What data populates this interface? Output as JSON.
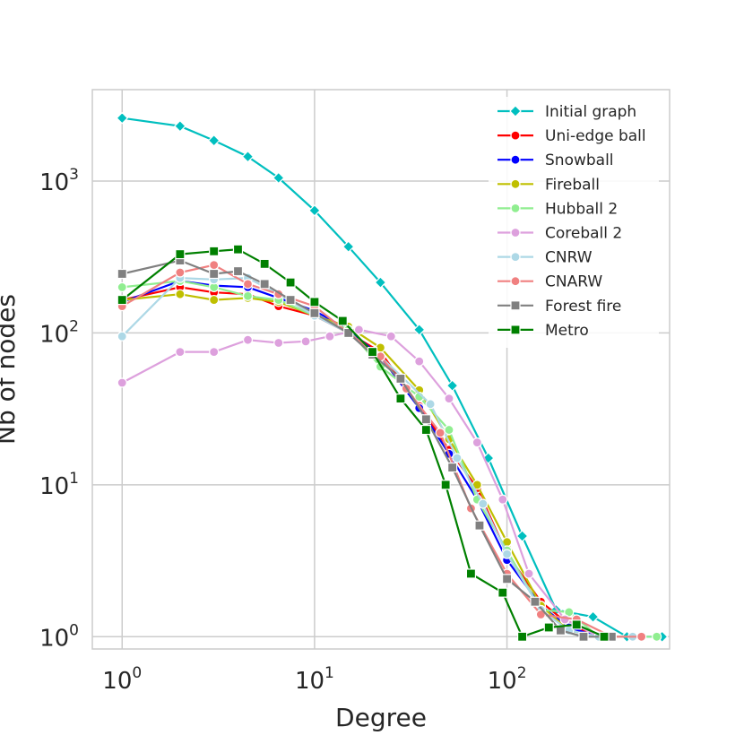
{
  "chart_data": {
    "type": "line",
    "xlabel": "Degree",
    "ylabel": "Nb of nodes",
    "xscale": "log",
    "yscale": "log",
    "xlim": [
      0.7,
      700
    ],
    "ylim": [
      0.83,
      4000
    ],
    "x_ticks": [
      {
        "value": 1,
        "base": "10",
        "exp": "0"
      },
      {
        "value": 10,
        "base": "10",
        "exp": "1"
      },
      {
        "value": 100,
        "base": "10",
        "exp": "2"
      }
    ],
    "y_ticks": [
      {
        "value": 1,
        "base": "10",
        "exp": "0"
      },
      {
        "value": 10,
        "base": "10",
        "exp": "1"
      },
      {
        "value": 100,
        "base": "10",
        "exp": "2"
      },
      {
        "value": 1000,
        "base": "10",
        "exp": "3"
      }
    ],
    "grid": true,
    "legend_position": "top-right",
    "series": [
      {
        "name": "Initial graph",
        "color": "#00bfbf",
        "marker": "diamond",
        "points": [
          [
            1,
            2600
          ],
          [
            2,
            2300
          ],
          [
            3,
            1850
          ],
          [
            4.5,
            1450
          ],
          [
            6.5,
            1050
          ],
          [
            10,
            640
          ],
          [
            15,
            370
          ],
          [
            22,
            215
          ],
          [
            35,
            105
          ],
          [
            52,
            45
          ],
          [
            80,
            15
          ],
          [
            120,
            4.6
          ],
          [
            180,
            1.5
          ],
          [
            280,
            1.35
          ],
          [
            420,
            1
          ],
          [
            640,
            1
          ]
        ]
      },
      {
        "name": "Uni-edge ball",
        "color": "#ff0000",
        "marker": "circle",
        "points": [
          [
            1,
            165
          ],
          [
            2,
            200
          ],
          [
            3,
            185
          ],
          [
            4.5,
            180
          ],
          [
            6.5,
            150
          ],
          [
            10,
            130
          ],
          [
            15,
            100
          ],
          [
            22,
            75
          ],
          [
            35,
            33
          ],
          [
            50,
            17
          ],
          [
            70,
            9.5
          ],
          [
            100,
            3.5
          ],
          [
            150,
            1.7
          ],
          [
            210,
            1.2
          ],
          [
            300,
            1
          ],
          [
            500,
            1
          ]
        ]
      },
      {
        "name": "Snowball",
        "color": "#0000ff",
        "marker": "circle",
        "points": [
          [
            1,
            160
          ],
          [
            2,
            220
          ],
          [
            3,
            205
          ],
          [
            4.5,
            200
          ],
          [
            6.5,
            170
          ],
          [
            10,
            140
          ],
          [
            15,
            105
          ],
          [
            22,
            70
          ],
          [
            35,
            32
          ],
          [
            50,
            16
          ],
          [
            70,
            8
          ],
          [
            100,
            3.2
          ],
          [
            150,
            1.6
          ],
          [
            210,
            1.15
          ],
          [
            300,
            1
          ],
          [
            450,
            1
          ]
        ]
      },
      {
        "name": "Fireball",
        "color": "#bfbf00",
        "marker": "circle",
        "points": [
          [
            1,
            165
          ],
          [
            2,
            180
          ],
          [
            3,
            165
          ],
          [
            4.5,
            170
          ],
          [
            6.5,
            160
          ],
          [
            10,
            130
          ],
          [
            15,
            110
          ],
          [
            22,
            80
          ],
          [
            35,
            42
          ],
          [
            50,
            20
          ],
          [
            70,
            10
          ],
          [
            100,
            4.2
          ],
          [
            150,
            1.6
          ],
          [
            210,
            1.1
          ],
          [
            300,
            1
          ],
          [
            450,
            1
          ]
        ]
      },
      {
        "name": "Hubball 2",
        "color": "#90ee90",
        "marker": "circle",
        "points": [
          [
            1,
            200
          ],
          [
            2,
            220
          ],
          [
            3,
            200
          ],
          [
            4.5,
            175
          ],
          [
            6.5,
            165
          ],
          [
            10,
            130
          ],
          [
            15,
            105
          ],
          [
            22,
            60
          ],
          [
            35,
            38
          ],
          [
            50,
            23
          ],
          [
            70,
            8
          ],
          [
            100,
            3.7
          ],
          [
            150,
            1.5
          ],
          [
            210,
            1.45
          ],
          [
            300,
            1
          ],
          [
            600,
            1
          ]
        ]
      },
      {
        "name": "Coreball 2",
        "color": "#dda0dd",
        "marker": "circle",
        "points": [
          [
            1,
            47
          ],
          [
            2,
            75
          ],
          [
            3,
            75
          ],
          [
            4.5,
            90
          ],
          [
            6.5,
            86
          ],
          [
            9,
            88
          ],
          [
            12,
            95
          ],
          [
            17,
            105
          ],
          [
            25,
            95
          ],
          [
            35,
            65
          ],
          [
            50,
            37
          ],
          [
            70,
            19
          ],
          [
            95,
            8
          ],
          [
            130,
            2.6
          ],
          [
            200,
            1.3
          ],
          [
            300,
            1
          ]
        ]
      },
      {
        "name": "CNRW",
        "color": "#add8e6",
        "marker": "circle",
        "points": [
          [
            1,
            95
          ],
          [
            2,
            230
          ],
          [
            3,
            225
          ],
          [
            4.5,
            230
          ],
          [
            6.5,
            180
          ],
          [
            10,
            130
          ],
          [
            15,
            100
          ],
          [
            22,
            70
          ],
          [
            40,
            34
          ],
          [
            55,
            15
          ],
          [
            75,
            7.5
          ],
          [
            100,
            3.5
          ],
          [
            150,
            1.5
          ],
          [
            210,
            1.1
          ],
          [
            300,
            1
          ],
          [
            450,
            1
          ]
        ]
      },
      {
        "name": "CNARW",
        "color": "#f08080",
        "marker": "circle",
        "points": [
          [
            1,
            150
          ],
          [
            2,
            250
          ],
          [
            3,
            280
          ],
          [
            4.5,
            210
          ],
          [
            6.5,
            180
          ],
          [
            10,
            150
          ],
          [
            15,
            100
          ],
          [
            22,
            70
          ],
          [
            30,
            43
          ],
          [
            45,
            22
          ],
          [
            65,
            7
          ],
          [
            100,
            2.6
          ],
          [
            150,
            1.4
          ],
          [
            230,
            1.3
          ],
          [
            350,
            1
          ],
          [
            500,
            1
          ]
        ]
      },
      {
        "name": "Forest fire",
        "color": "#808080",
        "marker": "square",
        "points": [
          [
            1,
            245
          ],
          [
            2,
            300
          ],
          [
            3,
            245
          ],
          [
            4,
            255
          ],
          [
            5.5,
            210
          ],
          [
            7.5,
            165
          ],
          [
            10,
            135
          ],
          [
            15,
            100
          ],
          [
            20,
            72
          ],
          [
            28,
            50
          ],
          [
            38,
            27
          ],
          [
            52,
            13
          ],
          [
            72,
            5.4
          ],
          [
            100,
            2.4
          ],
          [
            140,
            1.7
          ],
          [
            190,
            1.1
          ],
          [
            250,
            1
          ],
          [
            350,
            1
          ]
        ]
      },
      {
        "name": "Metro",
        "color": "#008000",
        "marker": "square",
        "points": [
          [
            1,
            165
          ],
          [
            2,
            330
          ],
          [
            3,
            345
          ],
          [
            4,
            355
          ],
          [
            5.5,
            285
          ],
          [
            7.5,
            215
          ],
          [
            10,
            160
          ],
          [
            14,
            120
          ],
          [
            20,
            75
          ],
          [
            28,
            37
          ],
          [
            38,
            23
          ],
          [
            48,
            10
          ],
          [
            65,
            2.6
          ],
          [
            95,
            1.95
          ],
          [
            120,
            1
          ],
          [
            165,
            1.15
          ],
          [
            230,
            1.2
          ],
          [
            320,
            1
          ]
        ]
      }
    ]
  }
}
